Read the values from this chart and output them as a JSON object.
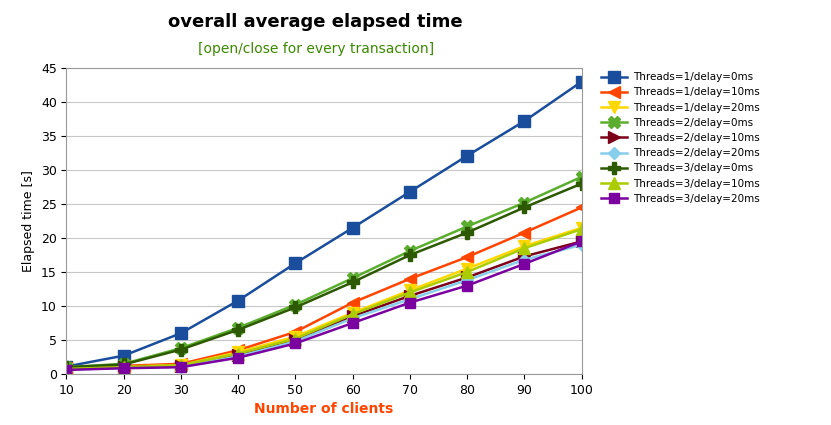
{
  "title": "overall average elapsed time",
  "subtitle": "[open/close for every transaction]",
  "xlabel": "Number of clients",
  "ylabel": "Elapsed time [s]",
  "x": [
    10,
    20,
    30,
    40,
    50,
    60,
    70,
    80,
    90,
    100
  ],
  "ylim": [
    0,
    45
  ],
  "xlim": [
    10,
    100
  ],
  "series": [
    {
      "label": "Threads=1/delay=0ms",
      "color": "#1A4E9C",
      "marker": "s",
      "values": [
        1.1,
        2.7,
        6.0,
        10.8,
        16.3,
        21.5,
        26.8,
        32.1,
        37.2,
        43.0
      ]
    },
    {
      "label": "Threads=1/delay=10ms",
      "color": "#FF4500",
      "marker": "<",
      "values": [
        0.9,
        1.2,
        1.5,
        3.5,
        6.2,
        10.5,
        14.0,
        17.2,
        20.8,
        24.5
      ]
    },
    {
      "label": "Threads=1/delay=20ms",
      "color": "#FFD700",
      "marker": "v",
      "values": [
        0.8,
        1.1,
        1.3,
        3.2,
        5.5,
        9.0,
        12.3,
        15.5,
        18.8,
        21.5
      ]
    },
    {
      "label": "Threads=2/delay=0ms",
      "color": "#5BAD2E",
      "marker": "X",
      "values": [
        1.0,
        1.5,
        3.8,
        6.8,
        10.2,
        14.1,
        18.1,
        21.7,
        25.2,
        29.0
      ]
    },
    {
      "label": "Threads=2/delay=10ms",
      "color": "#7B0018",
      "marker": ">",
      "values": [
        0.7,
        1.0,
        1.2,
        2.8,
        5.0,
        8.5,
        11.5,
        14.2,
        17.3,
        19.5
      ]
    },
    {
      "label": "Threads=2/delay=20ms",
      "color": "#87CEEB",
      "marker": "D",
      "values": [
        0.65,
        0.9,
        1.1,
        2.6,
        4.8,
        8.2,
        11.0,
        13.8,
        16.8,
        19.0
      ]
    },
    {
      "label": "Threads=3/delay=0ms",
      "color": "#2D5A00",
      "marker": "P",
      "values": [
        1.0,
        1.4,
        3.6,
        6.5,
        9.8,
        13.5,
        17.5,
        20.8,
        24.5,
        28.0
      ]
    },
    {
      "label": "Threads=3/delay=10ms",
      "color": "#AACC00",
      "marker": "^",
      "values": [
        0.75,
        1.0,
        1.3,
        3.0,
        5.2,
        8.8,
        12.0,
        15.0,
        18.5,
        21.3
      ]
    },
    {
      "label": "Threads=3/delay=20ms",
      "color": "#7B00A0",
      "marker": "s",
      "values": [
        0.6,
        0.85,
        1.0,
        2.4,
        4.5,
        7.5,
        10.5,
        13.0,
        16.2,
        19.5
      ]
    }
  ],
  "title_fontsize": 13,
  "subtitle_color": "#3A8A00",
  "xlabel_color": "#FF4500",
  "ylabel_color": "#000000",
  "tick_color": "#000000",
  "background_color": "#FFFFFF",
  "grid_color": "#C8C8C8"
}
